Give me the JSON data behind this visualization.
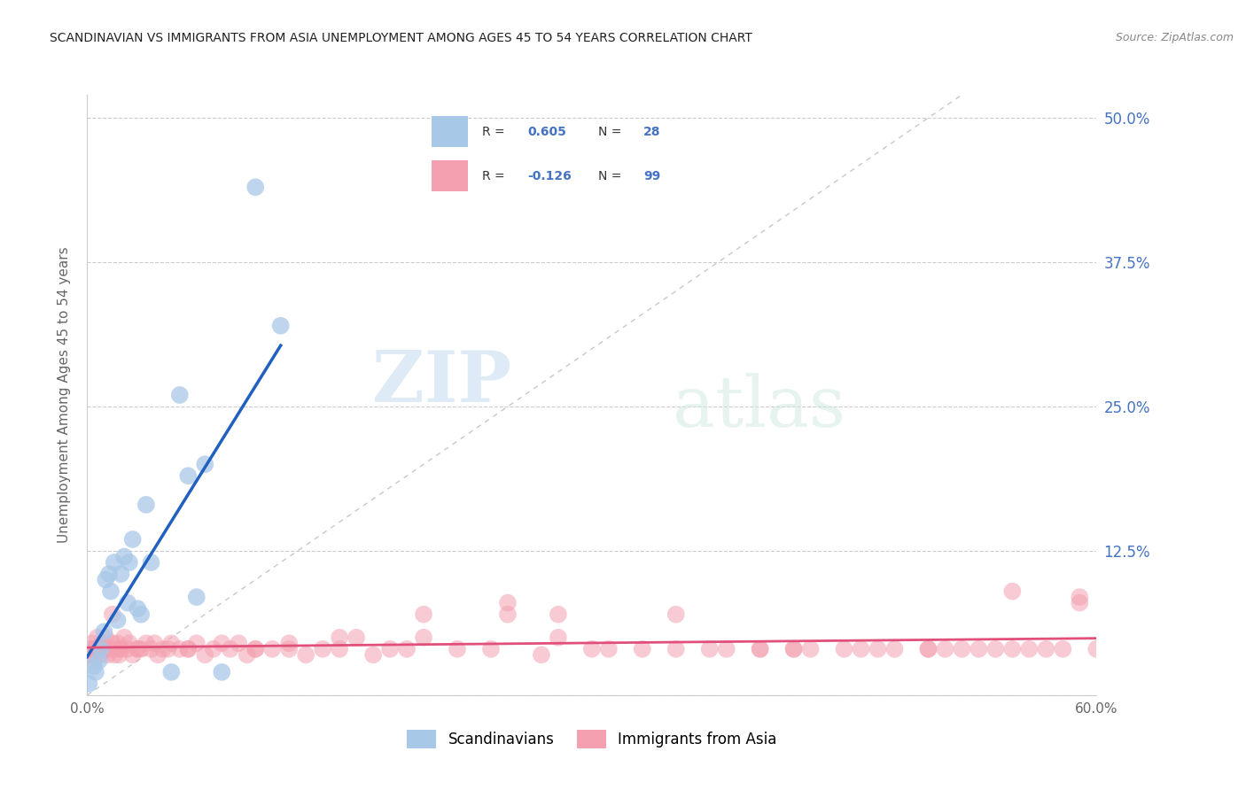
{
  "title": "SCANDINAVIAN VS IMMIGRANTS FROM ASIA UNEMPLOYMENT AMONG AGES 45 TO 54 YEARS CORRELATION CHART",
  "source": "Source: ZipAtlas.com",
  "ylabel": "Unemployment Among Ages 45 to 54 years",
  "xlim": [
    0,
    0.6
  ],
  "ylim": [
    0,
    0.52
  ],
  "xtick_vals": [
    0.0,
    0.1,
    0.2,
    0.3,
    0.4,
    0.5,
    0.6
  ],
  "xtick_labels": [
    "0.0%",
    "",
    "",
    "",
    "",
    "",
    "60.0%"
  ],
  "ytick_vals": [
    0.0,
    0.125,
    0.25,
    0.375,
    0.5
  ],
  "ytick_labels": [
    "",
    "12.5%",
    "25.0%",
    "37.5%",
    "50.0%"
  ],
  "blue_color": "#a8c8e8",
  "pink_color": "#f4a0b0",
  "blue_line_color": "#2060c0",
  "pink_line_color": "#e0507a",
  "diagonal_color": "#c8c8c8",
  "background_color": "#ffffff",
  "watermark_zip": "ZIP",
  "watermark_atlas": "atlas",
  "legend_r_color": "#4472c4",
  "legend_text_color": "#333333",
  "axis_color": "#cccccc",
  "ylabel_color": "#666666",
  "ytick_color": "#4472c4",
  "xtick_color": "#666666",
  "scand_x": [
    0.001,
    0.004,
    0.005,
    0.007,
    0.008,
    0.01,
    0.011,
    0.013,
    0.014,
    0.016,
    0.018,
    0.02,
    0.022,
    0.024,
    0.025,
    0.027,
    0.03,
    0.032,
    0.035,
    0.038,
    0.05,
    0.055,
    0.06,
    0.065,
    0.07,
    0.08,
    0.1,
    0.115
  ],
  "scand_y": [
    0.01,
    0.025,
    0.02,
    0.03,
    0.04,
    0.055,
    0.1,
    0.105,
    0.09,
    0.115,
    0.065,
    0.105,
    0.12,
    0.08,
    0.115,
    0.135,
    0.075,
    0.07,
    0.165,
    0.115,
    0.02,
    0.26,
    0.19,
    0.085,
    0.2,
    0.02,
    0.44,
    0.32
  ],
  "asia_x": [
    0.001,
    0.002,
    0.003,
    0.004,
    0.005,
    0.006,
    0.007,
    0.008,
    0.009,
    0.01,
    0.011,
    0.012,
    0.013,
    0.015,
    0.016,
    0.017,
    0.018,
    0.019,
    0.02,
    0.022,
    0.024,
    0.025,
    0.027,
    0.03,
    0.032,
    0.035,
    0.038,
    0.04,
    0.042,
    0.045,
    0.048,
    0.05,
    0.055,
    0.06,
    0.065,
    0.07,
    0.075,
    0.08,
    0.085,
    0.09,
    0.095,
    0.1,
    0.11,
    0.12,
    0.13,
    0.14,
    0.15,
    0.16,
    0.17,
    0.18,
    0.19,
    0.2,
    0.22,
    0.24,
    0.25,
    0.27,
    0.28,
    0.3,
    0.31,
    0.33,
    0.35,
    0.37,
    0.38,
    0.4,
    0.42,
    0.43,
    0.45,
    0.46,
    0.47,
    0.48,
    0.5,
    0.51,
    0.52,
    0.53,
    0.54,
    0.55,
    0.56,
    0.57,
    0.58,
    0.59,
    0.6,
    0.003,
    0.008,
    0.015,
    0.02,
    0.03,
    0.06,
    0.1,
    0.15,
    0.2,
    0.28,
    0.35,
    0.42,
    0.5,
    0.55,
    0.59,
    0.12,
    0.25,
    0.4
  ],
  "asia_y": [
    0.04,
    0.035,
    0.045,
    0.03,
    0.04,
    0.05,
    0.04,
    0.035,
    0.045,
    0.04,
    0.05,
    0.035,
    0.04,
    0.045,
    0.035,
    0.04,
    0.045,
    0.035,
    0.04,
    0.05,
    0.04,
    0.045,
    0.035,
    0.04,
    0.04,
    0.045,
    0.04,
    0.045,
    0.035,
    0.04,
    0.04,
    0.045,
    0.04,
    0.04,
    0.045,
    0.035,
    0.04,
    0.045,
    0.04,
    0.045,
    0.035,
    0.04,
    0.04,
    0.045,
    0.035,
    0.04,
    0.04,
    0.05,
    0.035,
    0.04,
    0.04,
    0.05,
    0.04,
    0.04,
    0.08,
    0.035,
    0.07,
    0.04,
    0.04,
    0.04,
    0.04,
    0.04,
    0.04,
    0.04,
    0.04,
    0.04,
    0.04,
    0.04,
    0.04,
    0.04,
    0.04,
    0.04,
    0.04,
    0.04,
    0.04,
    0.09,
    0.04,
    0.04,
    0.04,
    0.08,
    0.04,
    0.04,
    0.04,
    0.07,
    0.04,
    0.04,
    0.04,
    0.04,
    0.05,
    0.07,
    0.05,
    0.07,
    0.04,
    0.04,
    0.04,
    0.085,
    0.04,
    0.07,
    0.04
  ]
}
